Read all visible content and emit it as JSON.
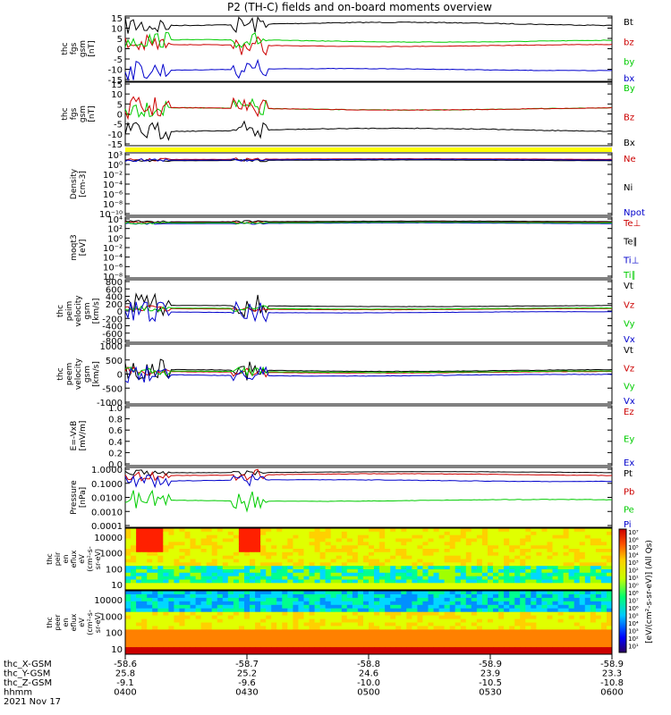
{
  "title": "P2 (TH-C) fields and on-board moments overview",
  "chart_data": {
    "type": "line",
    "title": "P2 (TH-C) fields and on-board moments overview",
    "x_axis": {
      "tick_labels_hhmm": [
        "0400",
        "0430",
        "0500",
        "0530",
        "0600"
      ],
      "date": "2021 Nov 17",
      "row_labels": [
        "thc_X-GSM",
        "thc_Y-GSM",
        "thc_Z-GSM",
        "hhmm"
      ],
      "rows": [
        [
          "-58.6",
          "-58.7",
          "-58.8",
          "-58.9",
          "-58.9"
        ],
        [
          "25.8",
          "25.2",
          "24.6",
          "23.9",
          "23.3"
        ],
        [
          "-9.1",
          "-9.6",
          "-10.0",
          "-10.5",
          "-10.8"
        ],
        [
          "0400",
          "0430",
          "0500",
          "0530",
          "0600"
        ]
      ]
    },
    "panels": [
      {
        "id": "fgs-gsm",
        "ylabel": [
          "thc",
          "fgs",
          "gsm",
          "[nT]"
        ],
        "yticks": [
          "15",
          "10",
          "5",
          "0",
          "-5",
          "-10",
          "-15"
        ],
        "ylim": [
          -15,
          15
        ],
        "scale": "linear",
        "series": [
          {
            "name": "Bt",
            "color": "#000000"
          },
          {
            "name": "bz",
            "color": "#cc0000"
          },
          {
            "name": "by",
            "color": "#00cc00"
          },
          {
            "name": "bx",
            "color": "#0000cc"
          }
        ]
      },
      {
        "id": "fgs-gsm-2",
        "ylabel": [
          "thc",
          "fgs",
          "gsm",
          "[nT]"
        ],
        "yticks": [
          "15",
          "10",
          "5",
          "0",
          "-5",
          "-10",
          "-15"
        ],
        "ylim": [
          -15,
          15
        ],
        "scale": "linear",
        "series": [
          {
            "name": "By",
            "color": "#00cc00"
          },
          {
            "name": "Bz",
            "color": "#cc0000"
          },
          {
            "name": "Bx",
            "color": "#000000"
          }
        ]
      },
      {
        "id": "density",
        "ylabel": [
          "Density",
          "[cm-3]"
        ],
        "yticks": [
          "10³",
          "10⁰",
          "10⁻²",
          "10⁻⁴",
          "10⁻⁶",
          "10⁻⁸",
          "10⁻¹⁰"
        ],
        "scale": "log",
        "series": [
          {
            "name": "Ne",
            "color": "#cc0000"
          },
          {
            "name": "Ni",
            "color": "#000000"
          },
          {
            "name": "Npot",
            "color": "#0000cc"
          }
        ]
      },
      {
        "id": "temperature",
        "ylabel": [
          "moqt3",
          "[eV]"
        ],
        "yticks": [
          "10⁴",
          "10²",
          "10⁰",
          "10⁻²",
          "10⁻⁴",
          "10⁻⁶",
          "10⁻⁸"
        ],
        "scale": "log",
        "series": [
          {
            "name": "Te⊥",
            "color": "#cc0000"
          },
          {
            "name": "Te∥",
            "color": "#000000"
          },
          {
            "name": "Ti⊥",
            "color": "#0000cc"
          },
          {
            "name": "Ti∥",
            "color": "#00cc00"
          }
        ]
      },
      {
        "id": "peim-velocity",
        "ylabel": [
          "thc",
          "peim",
          "velocity",
          "gsm",
          "[km/s]"
        ],
        "yticks": [
          "800",
          "600",
          "400",
          "200",
          "0",
          "-200",
          "-400",
          "-600",
          "-800"
        ],
        "ylim": [
          -800,
          800
        ],
        "scale": "linear",
        "series": [
          {
            "name": "Vt",
            "color": "#000000"
          },
          {
            "name": "Vz",
            "color": "#cc0000"
          },
          {
            "name": "Vy",
            "color": "#00cc00"
          },
          {
            "name": "Vx",
            "color": "#0000cc"
          }
        ]
      },
      {
        "id": "peem-velocity",
        "ylabel": [
          "thc",
          "peem",
          "velocity",
          "gsm",
          "[km/s]"
        ],
        "yticks": [
          "1000",
          "500",
          "0",
          "-500",
          "-1000"
        ],
        "ylim": [
          -1000,
          1000
        ],
        "scale": "linear",
        "series": [
          {
            "name": "Vt",
            "color": "#000000"
          },
          {
            "name": "Vz",
            "color": "#cc0000"
          },
          {
            "name": "Vy",
            "color": "#00cc00"
          },
          {
            "name": "Vx",
            "color": "#0000cc"
          }
        ]
      },
      {
        "id": "efield",
        "ylabel": [
          "E=-VxB",
          "[mV/m]"
        ],
        "yticks": [
          "1.0",
          "0.8",
          "0.6",
          "0.4",
          "0.2",
          "0.0"
        ],
        "ylim": [
          0,
          1
        ],
        "scale": "linear",
        "series": [
          {
            "name": "Ez",
            "color": "#cc0000"
          },
          {
            "name": "Ey",
            "color": "#00cc00"
          },
          {
            "name": "Ex",
            "color": "#0000cc"
          }
        ]
      },
      {
        "id": "pressure",
        "ylabel": [
          "Pressure",
          "[nPa]"
        ],
        "yticks": [
          "1.0000",
          "0.1000",
          "0.0100",
          "0.0010",
          "0.0001"
        ],
        "scale": "log",
        "series": [
          {
            "name": "Pt",
            "color": "#000000"
          },
          {
            "name": "Pb",
            "color": "#cc0000"
          },
          {
            "name": "Pe",
            "color": "#00cc00"
          },
          {
            "name": "Pi",
            "color": "#0000cc"
          }
        ]
      }
    ],
    "spectrograms": [
      {
        "id": "peir-eflux",
        "ylabel": [
          "thc",
          "peir",
          "en",
          "eflux",
          "eV",
          "(cm²-s-",
          "sr-eV)"
        ],
        "yticks": [
          "10000",
          "1000",
          "100",
          "10"
        ]
      },
      {
        "id": "peer-eflux",
        "ylabel": [
          "thc",
          "peer",
          "en",
          "eflux",
          "eV",
          "(cm²-s-",
          "sr-eV)"
        ],
        "yticks": [
          "10000",
          "1000",
          "100",
          "10"
        ]
      }
    ],
    "colorbar": {
      "label": "[eV/(cm²-s-sr-eV)] (All Qs)",
      "ticks_top": [
        "10⁷",
        "10⁶",
        "10⁵",
        "10⁴",
        "10³",
        "10²",
        "10¹",
        "10⁰"
      ],
      "ticks_bottom": [
        "10⁸",
        "10⁷",
        "10⁶",
        "10⁵",
        "10⁴",
        "10³",
        "10²",
        "10¹"
      ]
    },
    "status_bar_color": "#ffff00"
  }
}
